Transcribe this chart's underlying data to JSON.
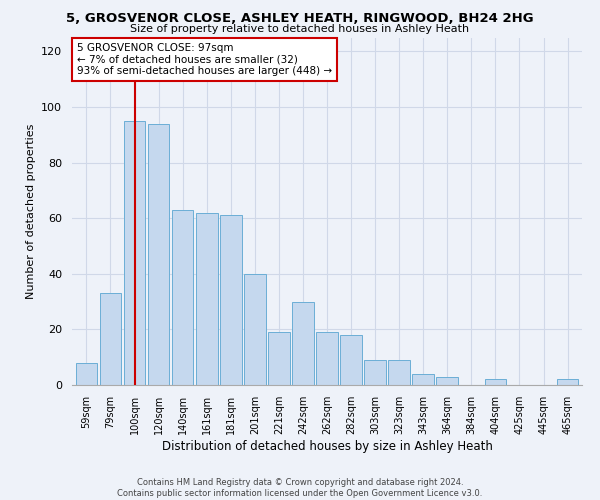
{
  "title": "5, GROSVENOR CLOSE, ASHLEY HEATH, RINGWOOD, BH24 2HG",
  "subtitle": "Size of property relative to detached houses in Ashley Heath",
  "xlabel": "Distribution of detached houses by size in Ashley Heath",
  "ylabel": "Number of detached properties",
  "bar_color": "#c5d8ee",
  "bar_edge_color": "#6baed6",
  "bin_labels": [
    "59sqm",
    "79sqm",
    "100sqm",
    "120sqm",
    "140sqm",
    "161sqm",
    "181sqm",
    "201sqm",
    "221sqm",
    "242sqm",
    "262sqm",
    "282sqm",
    "303sqm",
    "323sqm",
    "343sqm",
    "364sqm",
    "384sqm",
    "404sqm",
    "425sqm",
    "445sqm",
    "465sqm"
  ],
  "bar_heights": [
    8,
    33,
    95,
    94,
    63,
    62,
    61,
    40,
    19,
    30,
    19,
    18,
    9,
    9,
    4,
    3,
    0,
    2,
    0,
    0,
    2
  ],
  "ylim": [
    0,
    125
  ],
  "yticks": [
    0,
    20,
    40,
    60,
    80,
    100,
    120
  ],
  "vline_x_index": 2,
  "vline_color": "#cc0000",
  "annotation_title": "5 GROSVENOR CLOSE: 97sqm",
  "annotation_line1": "← 7% of detached houses are smaller (32)",
  "annotation_line2": "93% of semi-detached houses are larger (448) →",
  "annotation_box_color": "#ffffff",
  "annotation_box_edge_color": "#cc0000",
  "footer1": "Contains HM Land Registry data © Crown copyright and database right 2024.",
  "footer2": "Contains public sector information licensed under the Open Government Licence v3.0.",
  "background_color": "#eef2f9"
}
